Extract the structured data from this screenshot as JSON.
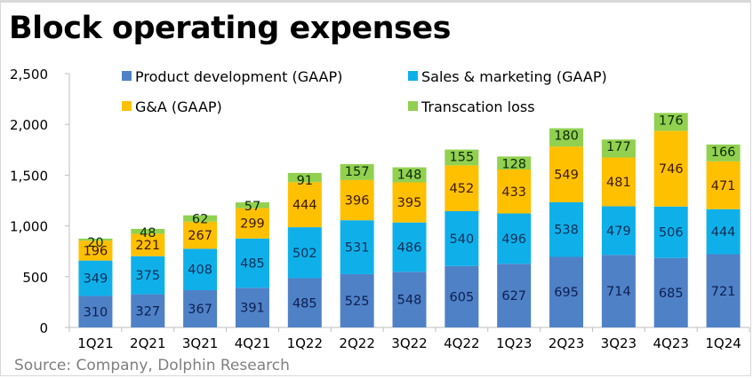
{
  "chart_data": {
    "type": "bar",
    "stacked": true,
    "title": "Block operating expenses",
    "source": "Source: Company, Dolphin Research",
    "xlabel": "",
    "ylabel": "",
    "ylim": [
      0,
      2500
    ],
    "yticks": [
      0,
      500,
      1000,
      1500,
      2000,
      2500
    ],
    "ytick_labels": [
      "0",
      "500",
      "1,000",
      "1,500",
      "2,000",
      "2,500"
    ],
    "grid": false,
    "legend_position": "top",
    "categories": [
      "1Q21",
      "2Q21",
      "3Q21",
      "4Q21",
      "1Q22",
      "2Q22",
      "3Q22",
      "4Q22",
      "1Q23",
      "2Q23",
      "3Q23",
      "4Q23",
      "1Q24"
    ],
    "series": [
      {
        "name": "Product development (GAAP)",
        "color": "#4f81c7",
        "label_color": "#0d1f4f",
        "values": [
          310,
          327,
          367,
          391,
          485,
          525,
          548,
          605,
          627,
          695,
          714,
          685,
          721
        ]
      },
      {
        "name": "Sales & marketing (GAAP)",
        "color": "#0fb0ea",
        "label_color": "#0d2f56",
        "values": [
          349,
          375,
          408,
          485,
          502,
          531,
          486,
          540,
          496,
          538,
          479,
          506,
          444
        ]
      },
      {
        "name": "G&A (GAAP)",
        "color": "#ffc000",
        "label_color": "#3d1a00",
        "values": [
          196,
          221,
          267,
          299,
          444,
          396,
          395,
          452,
          433,
          549,
          481,
          746,
          471
        ]
      },
      {
        "name": "Transcation loss",
        "color": "#92d050",
        "label_color": "#0a2a0a",
        "values": [
          20,
          48,
          62,
          57,
          91,
          157,
          148,
          155,
          128,
          180,
          177,
          176,
          166
        ]
      }
    ],
    "legend": [
      {
        "name": "Product development (GAAP)",
        "color": "#4f81c7"
      },
      {
        "name": "Sales & marketing (GAAP)",
        "color": "#0fb0ea"
      },
      {
        "name": "G&A (GAAP)",
        "color": "#ffc000"
      },
      {
        "name": "Transcation loss",
        "color": "#92d050"
      }
    ]
  }
}
